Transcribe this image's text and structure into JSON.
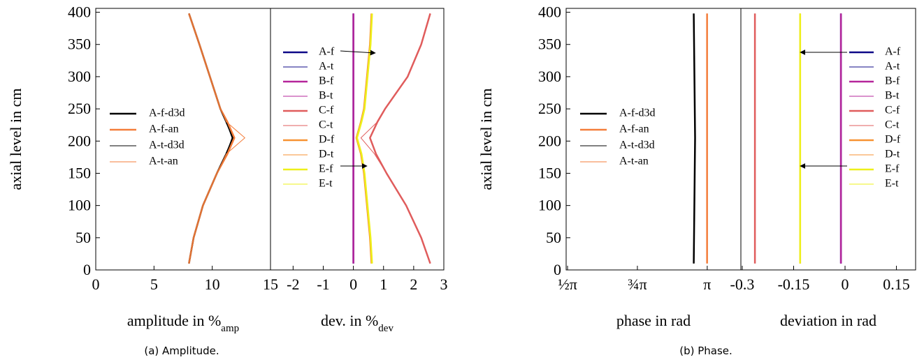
{
  "chart_data": [
    {
      "type": "line",
      "ylabel": "axial level in cm",
      "xlabel": "amplitude in %",
      "xlabel_sub": "amp",
      "y": [
        10,
        50,
        100,
        150,
        180,
        205,
        230,
        250,
        300,
        350,
        398
      ],
      "ylim": [
        0,
        406
      ],
      "yticks": [
        0,
        50,
        100,
        150,
        200,
        250,
        300,
        350,
        400
      ],
      "xlim": [
        0,
        15
      ],
      "xticks": [
        0,
        5,
        10,
        15
      ],
      "legend": "center left",
      "series": [
        {
          "name": "A-f-d3d",
          "color": "#000000",
          "width": 2.5,
          "values": [
            8.0,
            8.4,
            9.2,
            10.4,
            11.2,
            11.8,
            11.2,
            10.7,
            9.8,
            8.9,
            8.0
          ]
        },
        {
          "name": "A-f-an",
          "color": "#f47d3a",
          "width": 2.5,
          "values": [
            8.0,
            8.4,
            9.2,
            10.4,
            11.3,
            11.9,
            11.3,
            10.7,
            9.8,
            8.9,
            8.0
          ]
        },
        {
          "name": "A-t-d3d",
          "color": "#000000",
          "width": 1,
          "values": [
            8.0,
            8.4,
            9.2,
            10.4,
            11.2,
            11.7,
            11.2,
            10.7,
            9.8,
            8.9,
            8.0
          ]
        },
        {
          "name": "A-t-an",
          "color": "#f47d3a",
          "width": 1,
          "values": [
            8.0,
            8.4,
            9.2,
            10.4,
            11.2,
            12.8,
            11.2,
            10.7,
            9.8,
            8.9,
            8.0
          ]
        }
      ]
    },
    {
      "type": "line",
      "xlabel": "dev. in %",
      "xlabel_sub": "dev",
      "y": [
        10,
        50,
        100,
        150,
        180,
        205,
        230,
        250,
        300,
        350,
        398
      ],
      "ylim": [
        0,
        406
      ],
      "xlim": [
        -2.75,
        3
      ],
      "xticks": [
        -2,
        -1,
        0,
        1,
        2,
        3
      ],
      "legend": "upper left",
      "series": [
        {
          "name": "A-f",
          "color": "#0d0887",
          "width": 2.5,
          "values": [
            0,
            0,
            0,
            0,
            0,
            0,
            0,
            0,
            0,
            0,
            0
          ]
        },
        {
          "name": "A-t",
          "color": "#0d0887",
          "width": 1,
          "values": [
            0,
            0,
            0,
            0,
            0,
            0,
            0,
            0,
            0,
            0,
            0
          ]
        },
        {
          "name": "B-f",
          "color": "#b5259b",
          "width": 2.5,
          "values": [
            0,
            0,
            0,
            0,
            0,
            0,
            0,
            0,
            0,
            0,
            0
          ]
        },
        {
          "name": "B-t",
          "color": "#b5259b",
          "width": 1,
          "values": [
            0,
            0,
            0,
            0,
            0,
            0,
            0,
            0,
            0,
            0,
            0
          ]
        },
        {
          "name": "C-f",
          "color": "#e05c5c",
          "width": 2.5,
          "values": [
            2.55,
            2.25,
            1.75,
            1.1,
            0.75,
            0.55,
            0.8,
            1.05,
            1.8,
            2.25,
            2.55
          ]
        },
        {
          "name": "C-t",
          "color": "#e05c5c",
          "width": 1,
          "values": [
            2.55,
            2.25,
            1.75,
            1.1,
            0.7,
            0.25,
            0.8,
            1.05,
            1.8,
            2.25,
            2.55
          ]
        },
        {
          "name": "D-f",
          "color": "#f79232",
          "width": 2.5,
          "values": [
            0.6,
            0.55,
            0.45,
            0.35,
            0.25,
            0.1,
            0.25,
            0.35,
            0.45,
            0.55,
            0.6
          ]
        },
        {
          "name": "D-t",
          "color": "#f79232",
          "width": 1,
          "values": [
            0.6,
            0.55,
            0.45,
            0.35,
            0.25,
            0.1,
            0.25,
            0.35,
            0.45,
            0.55,
            0.6
          ]
        },
        {
          "name": "E-f",
          "color": "#eef01a",
          "width": 2.5,
          "values": [
            0.62,
            0.57,
            0.47,
            0.37,
            0.27,
            0.12,
            0.27,
            0.37,
            0.47,
            0.57,
            0.62
          ]
        },
        {
          "name": "E-t",
          "color": "#eef01a",
          "width": 1,
          "values": [
            0.62,
            0.57,
            0.47,
            0.37,
            0.27,
            0.12,
            0.27,
            0.37,
            0.47,
            0.57,
            0.62
          ]
        }
      ]
    },
    {
      "type": "line",
      "ylabel": "axial level in cm",
      "xlabel": "phase in rad",
      "y": [
        10,
        205,
        398
      ],
      "ylim": [
        0,
        406
      ],
      "yticks": [
        0,
        50,
        100,
        150,
        200,
        250,
        300,
        350,
        400
      ],
      "xlim": [
        1.555,
        3.52
      ],
      "xticks": [
        {
          "value": 1.5708,
          "label": "½π"
        },
        {
          "value": 2.3562,
          "label": "¾π"
        },
        {
          "value": 3.1416,
          "label": "π"
        }
      ],
      "legend": "center left",
      "series": [
        {
          "name": "A-f-d3d",
          "color": "#000000",
          "width": 2.5,
          "values": [
            2.99,
            3.005,
            2.99
          ]
        },
        {
          "name": "A-f-an",
          "color": "#f47d3a",
          "width": 2.5,
          "values": [
            3.14,
            3.14,
            3.14
          ]
        },
        {
          "name": "A-t-d3d",
          "color": "#000000",
          "width": 1,
          "values": [
            2.99,
            3.005,
            2.99
          ]
        },
        {
          "name": "A-t-an",
          "color": "#f47d3a",
          "width": 1,
          "values": [
            3.14,
            3.14,
            3.14
          ]
        }
      ]
    },
    {
      "type": "line",
      "xlabel": "deviation in rad",
      "y": [
        10,
        205,
        398
      ],
      "ylim": [
        0,
        406
      ],
      "xlim": [
        -0.304,
        0.206
      ],
      "xticks": [
        -0.3,
        -0.15,
        0,
        0.15
      ],
      "legend": "upper right",
      "series": [
        {
          "name": "A-f",
          "color": "#0d0887",
          "width": 2.5,
          "values": [
            -0.012,
            -0.012,
            -0.012
          ]
        },
        {
          "name": "A-t",
          "color": "#0d0887",
          "width": 1,
          "values": [
            -0.012,
            -0.012,
            -0.012
          ]
        },
        {
          "name": "B-f",
          "color": "#b5259b",
          "width": 2.5,
          "values": [
            -0.012,
            -0.012,
            -0.012
          ]
        },
        {
          "name": "B-t",
          "color": "#b5259b",
          "width": 1,
          "values": [
            -0.012,
            -0.012,
            -0.012
          ]
        },
        {
          "name": "C-f",
          "color": "#e05c5c",
          "width": 2.5,
          "values": [
            -0.263,
            -0.263,
            -0.263
          ]
        },
        {
          "name": "C-t",
          "color": "#e05c5c",
          "width": 1,
          "values": [
            -0.263,
            -0.263,
            -0.263
          ]
        },
        {
          "name": "D-f",
          "color": "#f79232",
          "width": 2.5,
          "values": [
            -0.131,
            -0.131,
            -0.131
          ]
        },
        {
          "name": "D-t",
          "color": "#f79232",
          "width": 1,
          "values": [
            -0.131,
            -0.131,
            -0.131
          ]
        },
        {
          "name": "E-f",
          "color": "#eef01a",
          "width": 2.5,
          "values": [
            -0.131,
            -0.131,
            -0.131
          ]
        },
        {
          "name": "E-t",
          "color": "#eef01a",
          "width": 1,
          "values": [
            -0.131,
            -0.131,
            -0.131
          ]
        }
      ]
    }
  ],
  "captions": [
    "(a) Amplitude.",
    "(b) Phase."
  ]
}
